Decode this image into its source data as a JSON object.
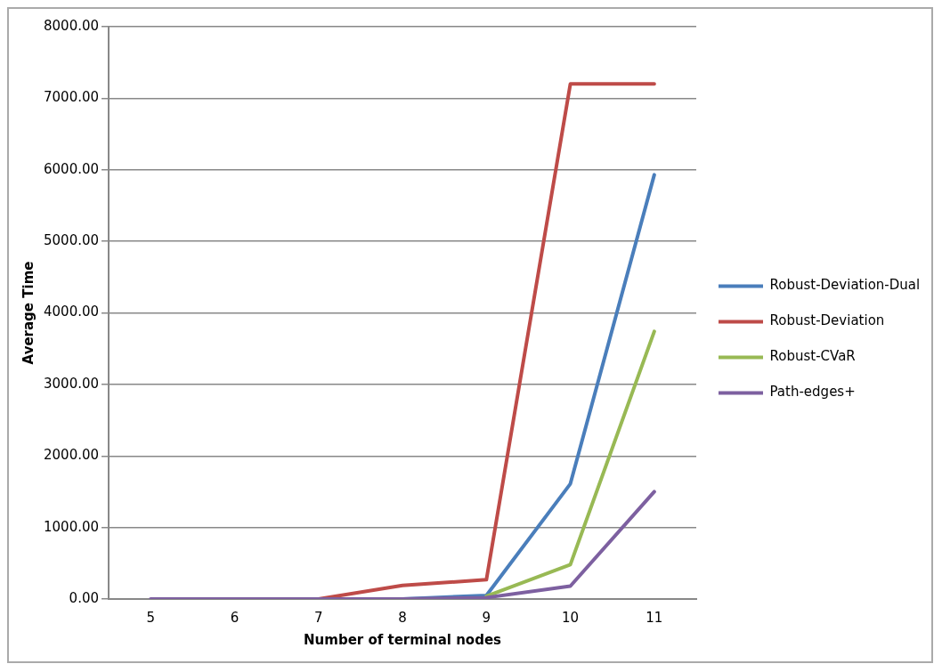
{
  "chart_data": {
    "type": "line",
    "xlabel": "Number of terminal nodes",
    "ylabel": "Average Time",
    "categories": [
      "5",
      "6",
      "7",
      "8",
      "9",
      "10",
      "11"
    ],
    "series": [
      {
        "name": "Robust-Deviation-Dual",
        "color": "#4a7ebb",
        "values": [
          null,
          null,
          null,
          0,
          50,
          1610,
          5930
        ]
      },
      {
        "name": "Robust-Deviation",
        "color": "#be4b48",
        "values": [
          null,
          null,
          0,
          190,
          270,
          7200,
          7200
        ]
      },
      {
        "name": "Robust-CVaR",
        "color": "#98b954",
        "values": [
          null,
          null,
          null,
          null,
          40,
          480,
          3740
        ]
      },
      {
        "name": "Path-edges+",
        "color": "#7d60a0",
        "values": [
          0,
          0,
          0,
          0,
          20,
          180,
          1500
        ]
      }
    ],
    "ylim": [
      0,
      8000
    ],
    "yticks": [
      {
        "value": 0,
        "label": "0.00"
      },
      {
        "value": 1000,
        "label": "1000.00"
      },
      {
        "value": 2000,
        "label": "2000.00"
      },
      {
        "value": 3000,
        "label": "3000.00"
      },
      {
        "value": 4000,
        "label": "4000.00"
      },
      {
        "value": 5000,
        "label": "5000.00"
      },
      {
        "value": 6000,
        "label": "6000.00"
      },
      {
        "value": 7000,
        "label": "7000.00"
      },
      {
        "value": 8000,
        "label": "8000.00"
      }
    ],
    "grid": "y",
    "legend": "right",
    "marker": "none",
    "line_style": "solid"
  }
}
